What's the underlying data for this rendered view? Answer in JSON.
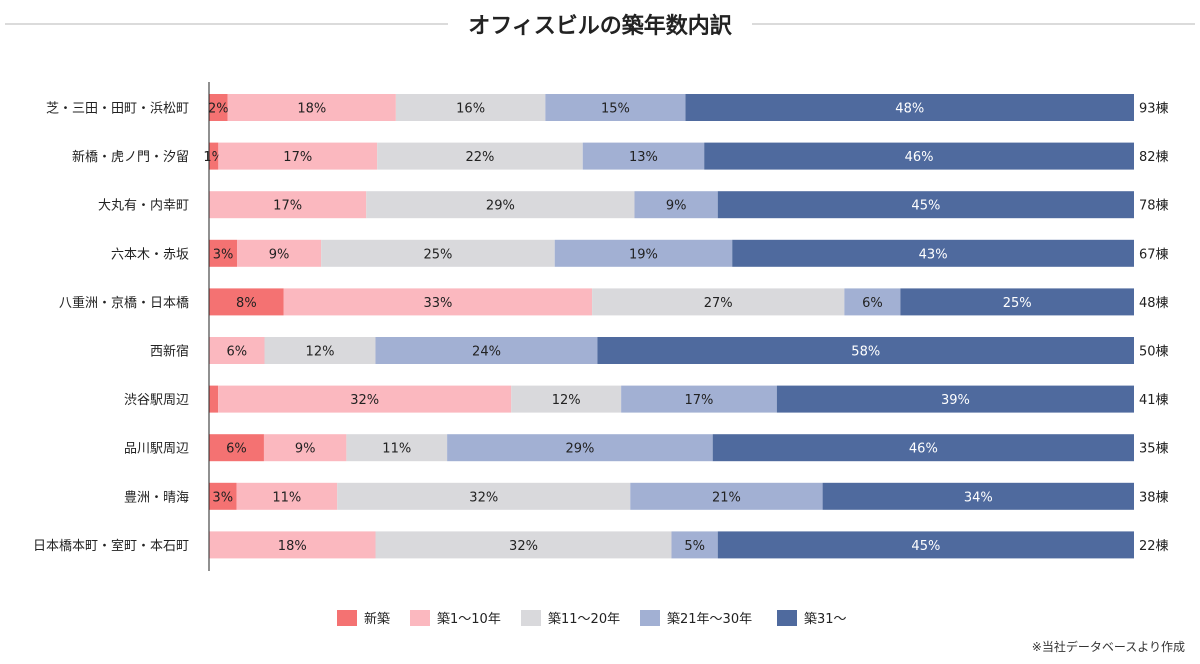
{
  "chart_data": {
    "type": "bar",
    "orientation": "horizontal",
    "stacked": true,
    "percent": true,
    "title": "オフィスビルの築年数内訳",
    "note": "※当社データベースより作成",
    "legend_position": "bottom",
    "grid": false,
    "xlim": [
      0,
      100
    ],
    "categories": [
      "芝・三田・田町・浜松町",
      "新橋・虎ノ門・汐留",
      "大丸有・内幸町",
      "六本木・赤坂",
      "八重洲・京橋・日本橋",
      "西新宿",
      "渋谷駅周辺",
      "品川駅周辺",
      "豊洲・晴海",
      "日本橋本町・室町・本石町"
    ],
    "totals": [
      "93棟",
      "82棟",
      "78棟",
      "67棟",
      "48棟",
      "50棟",
      "41棟",
      "35棟",
      "38棟",
      "22棟"
    ],
    "series": [
      {
        "name": "新築",
        "color": "#f47272",
        "label_color": "#222222",
        "values": [
          2,
          1,
          0,
          3,
          8,
          0,
          1,
          6,
          3,
          0
        ]
      },
      {
        "name": "築1～10年",
        "color": "#fbb8bf",
        "label_color": "#222222",
        "values": [
          18,
          17,
          17,
          9,
          33,
          6,
          32,
          9,
          11,
          18
        ]
      },
      {
        "name": "築11～20年",
        "color": "#d9d9dc",
        "label_color": "#222222",
        "values": [
          16,
          22,
          29,
          25,
          27,
          12,
          12,
          11,
          32,
          32
        ]
      },
      {
        "name": "築21年～30年",
        "color": "#a2b0d3",
        "label_color": "#222222",
        "values": [
          15,
          13,
          9,
          19,
          6,
          24,
          17,
          29,
          21,
          5
        ]
      },
      {
        "name": "築31～",
        "color": "#4f6a9e",
        "label_color": "#ffffff",
        "values": [
          48,
          46,
          45,
          43,
          25,
          58,
          39,
          46,
          34,
          45
        ]
      }
    ],
    "data_labels": [
      [
        "2%",
        "18%",
        "16%",
        "15%",
        "48%"
      ],
      [
        "1%",
        "17%",
        "22%",
        "13%",
        "46%"
      ],
      [
        "",
        "17%",
        "29%",
        "9%",
        "45%"
      ],
      [
        "3%",
        "9%",
        "25%",
        "19%",
        "43%"
      ],
      [
        "8%",
        "33%",
        "27%",
        "6%",
        "25%"
      ],
      [
        "",
        "6%",
        "12%",
        "24%",
        "58%"
      ],
      [
        "",
        "32%",
        "12%",
        "17%",
        "39%"
      ],
      [
        "6%",
        "9%",
        "11%",
        "29%",
        "46%"
      ],
      [
        "3%",
        "11%",
        "32%",
        "21%",
        "34%"
      ],
      [
        "",
        "18%",
        "32%",
        "5%",
        "45%"
      ]
    ]
  }
}
